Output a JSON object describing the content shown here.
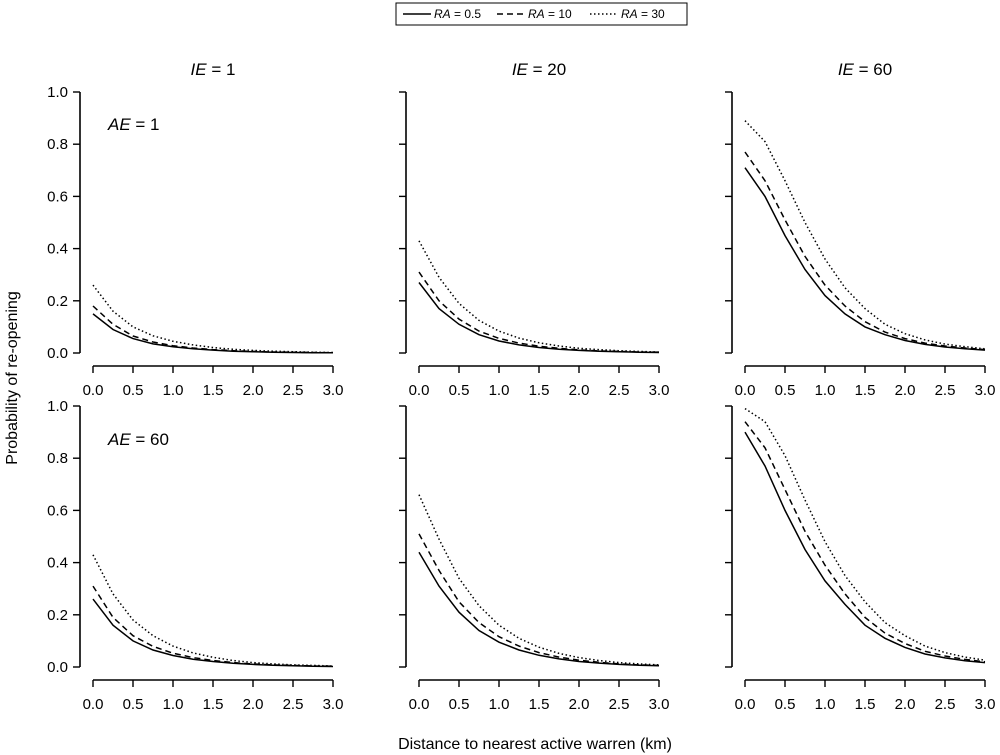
{
  "legend": {
    "entries": [
      {
        "var": "RA",
        "eq": " = 0.5",
        "dash": "solid"
      },
      {
        "var": "RA",
        "eq": " = 10",
        "dash": "dashed"
      },
      {
        "var": "RA",
        "eq": " = 30",
        "dash": "dotted"
      }
    ]
  },
  "figure_text": {
    "ylabel": "Probability of re-opening",
    "xlabel": "Distance to nearest active warren (km)"
  },
  "chart_data": {
    "type": "line",
    "layout": "2x3 small multiples",
    "xlabel": "Distance to nearest active warren (km)",
    "ylabel": "Probability of re-opening",
    "xlim": [
      0,
      3
    ],
    "ylim": [
      0,
      1
    ],
    "x_ticks": [
      "0.0",
      "0.5",
      "1.0",
      "1.5",
      "2.0",
      "2.5",
      "3.0"
    ],
    "y_ticks": [
      "0.0",
      "0.2",
      "0.4",
      "0.6",
      "0.8",
      "1.0"
    ],
    "grid": false,
    "legend_position": "top-center",
    "x": [
      0,
      0.25,
      0.5,
      0.75,
      1.0,
      1.25,
      1.5,
      1.75,
      2.0,
      2.25,
      2.5,
      2.75,
      3.0
    ],
    "col_titles": [
      {
        "var": "IE",
        "eq": " = 1"
      },
      {
        "var": "IE",
        "eq": " = 20"
      },
      {
        "var": "IE",
        "eq": " = 60"
      }
    ],
    "row_titles": [
      {
        "var": "AE",
        "eq": " = 1"
      },
      {
        "var": "AE",
        "eq": " = 60"
      }
    ],
    "panels": [
      {
        "row": 0,
        "col": 0,
        "series": [
          {
            "name": "RA = 0.5",
            "dash": "solid",
            "values": [
              0.15,
              0.09,
              0.055,
              0.035,
              0.024,
              0.016,
              0.011,
              0.007,
              0.005,
              0.003,
              0.002,
              0.001,
              0.001
            ]
          },
          {
            "name": "RA = 10",
            "dash": "dashed",
            "values": [
              0.18,
              0.11,
              0.065,
              0.042,
              0.028,
              0.019,
              0.013,
              0.009,
              0.006,
              0.004,
              0.003,
              0.002,
              0.001
            ]
          },
          {
            "name": "RA = 30",
            "dash": "dotted",
            "values": [
              0.26,
              0.16,
              0.1,
              0.066,
              0.045,
              0.031,
              0.021,
              0.014,
              0.01,
              0.007,
              0.005,
              0.003,
              0.002
            ]
          }
        ]
      },
      {
        "row": 0,
        "col": 1,
        "series": [
          {
            "name": "RA = 0.5",
            "dash": "solid",
            "values": [
              0.27,
              0.17,
              0.11,
              0.07,
              0.046,
              0.031,
              0.021,
              0.014,
              0.01,
              0.007,
              0.005,
              0.003,
              0.002
            ]
          },
          {
            "name": "RA = 10",
            "dash": "dashed",
            "values": [
              0.31,
              0.2,
              0.13,
              0.084,
              0.056,
              0.038,
              0.026,
              0.018,
              0.012,
              0.008,
              0.006,
              0.004,
              0.003
            ]
          },
          {
            "name": "RA = 30",
            "dash": "dotted",
            "values": [
              0.43,
              0.29,
              0.19,
              0.125,
              0.084,
              0.057,
              0.039,
              0.027,
              0.018,
              0.013,
              0.009,
              0.006,
              0.004
            ]
          }
        ]
      },
      {
        "row": 0,
        "col": 2,
        "series": [
          {
            "name": "RA = 0.5",
            "dash": "solid",
            "values": [
              0.71,
              0.6,
              0.45,
              0.32,
              0.22,
              0.15,
              0.1,
              0.07,
              0.048,
              0.033,
              0.023,
              0.016,
              0.011
            ]
          },
          {
            "name": "RA = 10",
            "dash": "dashed",
            "values": [
              0.77,
              0.66,
              0.51,
              0.37,
              0.26,
              0.18,
              0.12,
              0.08,
              0.055,
              0.038,
              0.027,
              0.019,
              0.013
            ]
          },
          {
            "name": "RA = 30",
            "dash": "dotted",
            "values": [
              0.89,
              0.81,
              0.66,
              0.5,
              0.36,
              0.25,
              0.17,
              0.11,
              0.074,
              0.05,
              0.034,
              0.024,
              0.016
            ]
          }
        ]
      },
      {
        "row": 1,
        "col": 0,
        "series": [
          {
            "name": "RA = 0.5",
            "dash": "solid",
            "values": [
              0.26,
              0.16,
              0.1,
              0.065,
              0.044,
              0.03,
              0.021,
              0.014,
              0.01,
              0.007,
              0.005,
              0.003,
              0.002
            ]
          },
          {
            "name": "RA = 10",
            "dash": "dashed",
            "values": [
              0.31,
              0.19,
              0.12,
              0.079,
              0.053,
              0.036,
              0.025,
              0.017,
              0.012,
              0.008,
              0.006,
              0.004,
              0.003
            ]
          },
          {
            "name": "RA = 30",
            "dash": "dotted",
            "values": [
              0.43,
              0.28,
              0.18,
              0.12,
              0.08,
              0.054,
              0.037,
              0.025,
              0.017,
              0.012,
              0.008,
              0.006,
              0.004
            ]
          }
        ]
      },
      {
        "row": 1,
        "col": 1,
        "series": [
          {
            "name": "RA = 0.5",
            "dash": "solid",
            "values": [
              0.44,
              0.31,
              0.21,
              0.14,
              0.095,
              0.065,
              0.045,
              0.031,
              0.021,
              0.015,
              0.01,
              0.007,
              0.005
            ]
          },
          {
            "name": "RA = 10",
            "dash": "dashed",
            "values": [
              0.51,
              0.37,
              0.25,
              0.17,
              0.116,
              0.08,
              0.055,
              0.038,
              0.026,
              0.018,
              0.012,
              0.008,
              0.006
            ]
          },
          {
            "name": "RA = 30",
            "dash": "dotted",
            "values": [
              0.66,
              0.49,
              0.34,
              0.235,
              0.16,
              0.11,
              0.076,
              0.052,
              0.036,
              0.025,
              0.017,
              0.012,
              0.008
            ]
          }
        ]
      },
      {
        "row": 1,
        "col": 2,
        "series": [
          {
            "name": "RA = 0.5",
            "dash": "solid",
            "values": [
              0.9,
              0.77,
              0.6,
              0.45,
              0.33,
              0.24,
              0.16,
              0.11,
              0.075,
              0.05,
              0.035,
              0.024,
              0.017
            ]
          },
          {
            "name": "RA = 10",
            "dash": "dashed",
            "values": [
              0.94,
              0.84,
              0.68,
              0.52,
              0.39,
              0.28,
              0.19,
              0.13,
              0.09,
              0.06,
              0.042,
              0.029,
              0.02
            ]
          },
          {
            "name": "RA = 30",
            "dash": "dotted",
            "values": [
              0.99,
              0.94,
              0.81,
              0.64,
              0.48,
              0.35,
              0.25,
              0.17,
              0.12,
              0.08,
              0.055,
              0.038,
              0.026
            ]
          }
        ]
      }
    ]
  }
}
